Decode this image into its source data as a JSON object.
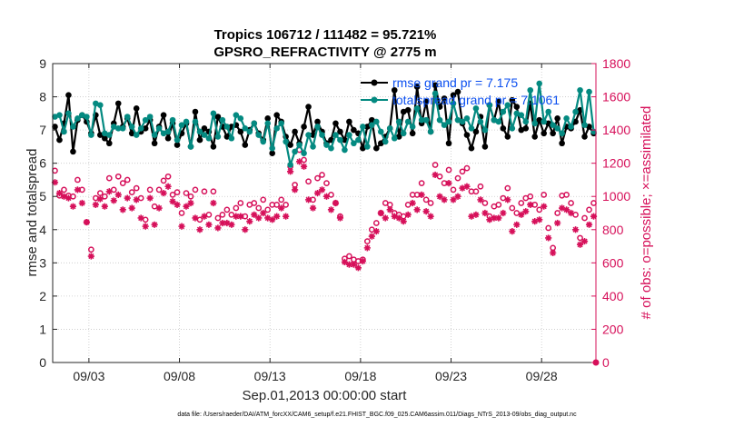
{
  "chart_data": {
    "type": "line",
    "title": "Tropics 106712 / 111482 = 95.721%",
    "subtitle": "GPSRO_REFRACTIVITY @ 2775 m",
    "xlabel": "Sep.01,2013 00:00:00 start",
    "ylabel": "rmse and totalspread",
    "y2label": "# of obs: o=possible; ×=assimilated",
    "footer": "data file: /Users/raeder/DAI/ATM_forcXX/CAM6_setup/f.e21.FHIST_BGC.f09_025.CAM6assim.011/Diags_NTrS_2013-09/obs_diag_output.nc",
    "xlim": [
      1.0,
      31.0
    ],
    "ylim": [
      0,
      9
    ],
    "y2lim": [
      0,
      1800
    ],
    "x_tick_values": [
      3,
      8,
      13,
      18,
      23,
      28
    ],
    "x_tick_labels": [
      "09/03",
      "09/08",
      "09/13",
      "09/18",
      "09/23",
      "09/28"
    ],
    "y_ticks": [
      0,
      1,
      2,
      3,
      4,
      5,
      6,
      7,
      8,
      9
    ],
    "y2_ticks": [
      0,
      200,
      400,
      600,
      800,
      1000,
      1200,
      1400,
      1600,
      1800
    ],
    "x": [
      1.125,
      1.375,
      1.625,
      1.875,
      2.125,
      2.375,
      2.625,
      2.875,
      3.125,
      3.375,
      3.625,
      3.875,
      4.125,
      4.375,
      4.625,
      4.875,
      5.125,
      5.375,
      5.625,
      5.875,
      6.125,
      6.375,
      6.625,
      6.875,
      7.125,
      7.375,
      7.625,
      7.875,
      8.125,
      8.375,
      8.625,
      8.875,
      9.125,
      9.375,
      9.625,
      9.875,
      10.125,
      10.375,
      10.625,
      10.875,
      11.125,
      11.375,
      11.625,
      11.875,
      12.125,
      12.375,
      12.625,
      12.875,
      13.125,
      13.375,
      13.625,
      13.875,
      14.125,
      14.375,
      14.625,
      14.875,
      15.125,
      15.375,
      15.625,
      15.875,
      16.125,
      16.375,
      16.625,
      16.875,
      17.125,
      17.375,
      17.625,
      17.875,
      18.125,
      18.375,
      18.625,
      18.875,
      19.125,
      19.375,
      19.625,
      19.875,
      20.125,
      20.375,
      20.625,
      20.875,
      21.125,
      21.375,
      21.625,
      21.875,
      22.125,
      22.375,
      22.625,
      22.875,
      23.125,
      23.375,
      23.625,
      23.875,
      24.125,
      24.375,
      24.625,
      24.875,
      25.125,
      25.375,
      25.625,
      25.875,
      26.125,
      26.375,
      26.625,
      26.875,
      27.125,
      27.375,
      27.625,
      27.875,
      28.125,
      28.375,
      28.625,
      28.875,
      29.125,
      29.375,
      29.625,
      29.875,
      30.125,
      30.375,
      30.625,
      30.875
    ],
    "series": [
      {
        "name": "rmse",
        "axis": "left",
        "legend": "rmse grand pr = 7.175",
        "color": "#000000",
        "values": [
          7.1,
          6.7,
          7.2,
          8.05,
          6.35,
          7.3,
          7.45,
          7.25,
          6.9,
          7.45,
          6.85,
          6.75,
          6.6,
          7.2,
          7.8,
          7.1,
          7.35,
          6.9,
          7.65,
          6.95,
          7.05,
          7.3,
          6.6,
          7.1,
          7.45,
          6.75,
          7.2,
          6.55,
          6.9,
          7.2,
          6.5,
          7.55,
          6.7,
          7.05,
          6.95,
          6.5,
          7.4,
          7.1,
          6.8,
          7.1,
          7.15,
          6.95,
          6.55,
          7.0,
          7.2,
          6.9,
          6.7,
          7.35,
          6.3,
          7.45,
          7.25,
          6.8,
          6.55,
          6.95,
          6.6,
          7.1,
          7.7,
          6.85,
          7.25,
          6.95,
          6.6,
          6.7,
          7.2,
          6.95,
          6.7,
          7.25,
          7.0,
          6.9,
          6.45,
          7.1,
          7.3,
          6.45,
          6.6,
          6.8,
          7.05,
          8.2,
          6.8,
          7.55,
          7.6,
          6.9,
          8.3,
          7.2,
          7.85,
          6.95,
          8.35,
          7.7,
          7.95,
          6.6,
          8.05,
          8.15,
          7.2,
          6.85,
          6.45,
          6.95,
          7.4,
          6.5,
          7.75,
          7.3,
          7.85,
          7.05,
          6.8,
          7.9,
          7.7,
          7.0,
          7.05,
          7.8,
          6.8,
          7.3,
          6.9,
          7.2,
          6.9,
          7.35,
          6.6,
          7.1,
          7.05,
          7.25,
          7.6,
          6.8,
          7.1,
          6.9
        ]
      },
      {
        "name": "totalspread",
        "axis": "left",
        "legend": "totalspread grand pr = 7.1061",
        "color": "#048a81",
        "values": [
          7.4,
          7.45,
          6.95,
          7.5,
          7.1,
          7.35,
          7.45,
          7.4,
          6.85,
          7.8,
          7.75,
          6.9,
          6.85,
          7.1,
          7.05,
          7.05,
          7.4,
          7.1,
          6.85,
          7.05,
          7.3,
          7.4,
          6.85,
          7.05,
          6.9,
          6.95,
          7.3,
          6.7,
          7.15,
          7.25,
          6.5,
          7.25,
          6.95,
          6.85,
          6.75,
          7.5,
          6.8,
          7.3,
          7.1,
          6.75,
          7.45,
          7.35,
          7.05,
          6.95,
          7.2,
          6.85,
          6.65,
          7.2,
          6.45,
          7.05,
          7.2,
          6.65,
          5.95,
          6.35,
          6.55,
          6.3,
          6.85,
          6.5,
          7.1,
          6.85,
          6.55,
          6.45,
          6.85,
          6.7,
          6.4,
          6.85,
          6.6,
          6.7,
          7.1,
          6.5,
          7.15,
          7.25,
          6.95,
          6.65,
          7.05,
          6.75,
          7.25,
          6.9,
          7.25,
          7.1,
          7.65,
          7.3,
          7.3,
          6.95,
          8.1,
          7.3,
          7.15,
          7.25,
          7.8,
          7.3,
          7.25,
          7.35,
          7.05,
          7.65,
          7.25,
          7.0,
          7.75,
          7.3,
          7.25,
          7.55,
          7.75,
          7.05,
          7.5,
          7.45,
          7.25,
          8.2,
          7.2,
          8.4,
          7.25,
          7.55,
          7.15,
          7.05,
          6.9,
          7.35,
          7.1,
          7.55,
          8.2,
          7.15,
          8.15,
          6.95
        ]
      },
      {
        "name": "obs possible",
        "axis": "right",
        "marker": "o",
        "color": "#d6105a",
        "values": [
          1155,
          1005,
          1040,
          1005,
          1000,
          1100,
          1040,
          845,
          680,
          990,
          1020,
          1000,
          1110,
          1040,
          1120,
          1080,
          1100,
          1025,
          1050,
          990,
          860,
          1040,
          940,
          1040,
          1095,
          1120,
          1010,
          1025,
          900,
          1020,
          1000,
          1040,
          860,
          1030,
          890,
          1030,
          870,
          890,
          920,
          890,
          930,
          960,
          880,
          950,
          960,
          930,
          980,
          920,
          950,
          950,
          980,
          950,
          1180,
          1070,
          1280,
          1220,
          1090,
          980,
          1110,
          1130,
          1080,
          1010,
          960,
          880,
          625,
          640,
          620,
          610,
          620,
          730,
          800,
          840,
          900,
          960,
          950,
          900,
          890,
          880,
          950,
          1010,
          1010,
          1080,
          980,
          960,
          1190,
          1120,
          1080,
          1160,
          1040,
          1110,
          1150,
          1170,
          1030,
          1030,
          1060,
          960,
          880,
          940,
          950,
          990,
          1050,
          930,
          900,
          960,
          990,
          1000,
          950,
          920,
          1010,
          810,
          690,
          900,
          1005,
          1010,
          960,
          890,
          750,
          870,
          920,
          960
        ]
      },
      {
        "name": "obs assimilated",
        "axis": "right",
        "marker": "*",
        "color": "#d6105a",
        "values": [
          1085,
          1020,
          1000,
          990,
          940,
          1040,
          960,
          845,
          640,
          950,
          985,
          940,
          1030,
          975,
          1010,
          920,
          990,
          930,
          980,
          870,
          820,
          990,
          830,
          930,
          1020,
          1060,
          970,
          950,
          820,
          940,
          960,
          870,
          800,
          880,
          830,
          960,
          810,
          840,
          840,
          830,
          880,
          880,
          800,
          850,
          890,
          870,
          900,
          870,
          860,
          880,
          930,
          880,
          1150,
          1040,
          1210,
          1180,
          980,
          930,
          1020,
          1040,
          1000,
          920,
          960,
          870,
          605,
          590,
          590,
          570,
          610,
          690,
          760,
          790,
          900,
          870,
          920,
          880,
          870,
          850,
          890,
          960,
          920,
          1010,
          910,
          880,
          1130,
          1000,
          980,
          1080,
          980,
          1000,
          1050,
          1060,
          880,
          890,
          980,
          900,
          860,
          870,
          870,
          900,
          980,
          790,
          830,
          890,
          910,
          950,
          850,
          860,
          940,
          750,
          660,
          840,
          930,
          920,
          900,
          800,
          710,
          730,
          830,
          880
        ]
      }
    ],
    "legend_position": "top-right (inside axes)"
  }
}
